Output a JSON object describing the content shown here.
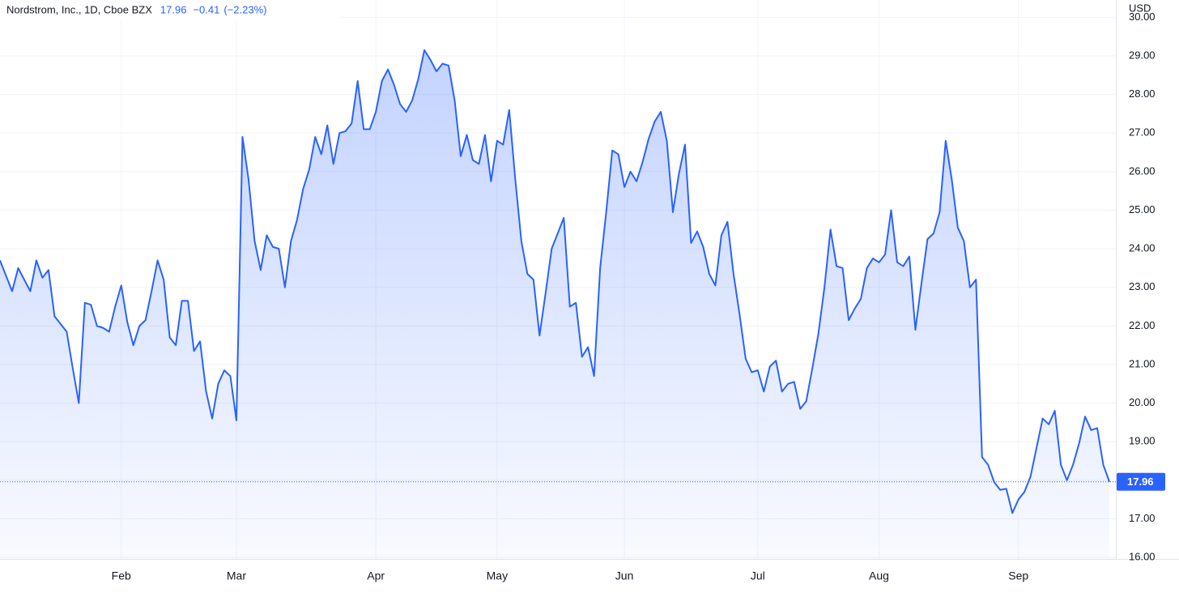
{
  "chart_data": {
    "type": "area",
    "title": "Nordstrom, Inc., 1D, Cboe BZX",
    "change": "−0.41",
    "change_pct": "(−2.23%)",
    "currency": "USD",
    "color": "#2962ff",
    "grid": true,
    "ylim": [
      15.96,
      30.45
    ],
    "yticks": [
      {
        "value": 16,
        "label": "16.00"
      },
      {
        "value": 17,
        "label": "17.00"
      },
      {
        "value": 18,
        "label": "18.00"
      },
      {
        "value": 19,
        "label": "19.00"
      },
      {
        "value": 20,
        "label": "20.00"
      },
      {
        "value": 21,
        "label": "21.00"
      },
      {
        "value": 22,
        "label": "22.00"
      },
      {
        "value": 23,
        "label": "23.00"
      },
      {
        "value": 24,
        "label": "24.00"
      },
      {
        "value": 25,
        "label": "25.00"
      },
      {
        "value": 26,
        "label": "26.00"
      },
      {
        "value": 27,
        "label": "27.00"
      },
      {
        "value": 28,
        "label": "28.00"
      },
      {
        "value": 29,
        "label": "29.00"
      },
      {
        "value": 30,
        "label": "30.00"
      }
    ],
    "categories": [
      null,
      null,
      null,
      null,
      null,
      null,
      null,
      null,
      null,
      null,
      null,
      null,
      null,
      null,
      null,
      null,
      null,
      null,
      null,
      null,
      "Feb",
      null,
      null,
      null,
      null,
      null,
      null,
      null,
      null,
      null,
      null,
      null,
      null,
      null,
      null,
      null,
      null,
      null,
      null,
      "Mar",
      null,
      null,
      null,
      null,
      null,
      null,
      null,
      null,
      null,
      null,
      null,
      null,
      null,
      null,
      null,
      null,
      null,
      null,
      null,
      null,
      null,
      null,
      "Apr",
      null,
      null,
      null,
      null,
      null,
      null,
      null,
      null,
      null,
      null,
      null,
      null,
      null,
      null,
      null,
      null,
      null,
      null,
      null,
      "May",
      null,
      null,
      null,
      null,
      null,
      null,
      null,
      null,
      null,
      null,
      null,
      null,
      null,
      null,
      null,
      null,
      null,
      null,
      null,
      null,
      "Jun",
      null,
      null,
      null,
      null,
      null,
      null,
      null,
      null,
      null,
      null,
      null,
      null,
      null,
      null,
      null,
      null,
      null,
      null,
      null,
      null,
      null,
      "Jul",
      null,
      null,
      null,
      null,
      null,
      null,
      null,
      null,
      null,
      null,
      null,
      null,
      null,
      null,
      null,
      null,
      null,
      null,
      null,
      "Aug",
      null,
      null,
      null,
      null,
      null,
      null,
      null,
      null,
      null,
      null,
      null,
      null,
      null,
      null,
      null,
      null,
      null,
      null,
      null,
      null,
      null,
      null,
      "Sep",
      null,
      null,
      null,
      null,
      null,
      null,
      null,
      null,
      null,
      null,
      null,
      null,
      null,
      null,
      null
    ],
    "series": [
      {
        "name": "Nordstrom, Inc.",
        "color": "#2962ff",
        "values": [
          23.7,
          23.3,
          22.9,
          23.5,
          23.2,
          22.9,
          23.7,
          23.25,
          23.45,
          22.25,
          22.05,
          21.85,
          20.9,
          20.0,
          22.6,
          22.55,
          22.0,
          21.95,
          21.85,
          22.5,
          23.05,
          22.1,
          21.5,
          22.0,
          22.15,
          22.9,
          23.7,
          23.2,
          21.7,
          21.5,
          22.65,
          22.65,
          21.35,
          21.6,
          20.3,
          19.6,
          20.5,
          20.85,
          20.7,
          19.55,
          26.9,
          25.8,
          24.2,
          23.45,
          24.35,
          24.05,
          24.0,
          23.0,
          24.2,
          24.75,
          25.55,
          26.05,
          26.9,
          26.45,
          27.2,
          26.2,
          27.0,
          27.05,
          27.25,
          28.35,
          27.1,
          27.1,
          27.55,
          28.35,
          28.65,
          28.25,
          27.75,
          27.55,
          27.85,
          28.4,
          29.15,
          28.9,
          28.6,
          28.8,
          28.75,
          27.85,
          26.4,
          26.95,
          26.3,
          26.2,
          26.95,
          25.75,
          26.8,
          26.7,
          27.6,
          25.8,
          24.2,
          23.35,
          23.2,
          21.75,
          22.85,
          24.0,
          24.4,
          24.8,
          22.5,
          22.6,
          21.2,
          21.45,
          20.7,
          23.5,
          24.95,
          26.55,
          26.45,
          25.6,
          26.0,
          25.75,
          26.25,
          26.85,
          27.3,
          27.55,
          26.8,
          24.95,
          25.95,
          26.7,
          24.15,
          24.45,
          24.05,
          23.35,
          23.05,
          24.35,
          24.7,
          23.35,
          22.3,
          21.15,
          20.8,
          20.85,
          20.3,
          20.95,
          21.1,
          20.3,
          20.5,
          20.55,
          19.85,
          20.05,
          20.9,
          21.8,
          23.0,
          24.5,
          23.55,
          23.5,
          22.15,
          22.45,
          22.7,
          23.5,
          23.75,
          23.65,
          23.85,
          25.0,
          23.65,
          23.55,
          23.8,
          21.9,
          23.1,
          24.25,
          24.4,
          24.95,
          26.8,
          25.8,
          24.55,
          24.2,
          23.0,
          23.2,
          18.6,
          18.4,
          17.95,
          17.75,
          17.78,
          17.15,
          17.5,
          17.7,
          18.1,
          18.85,
          19.6,
          19.45,
          19.8,
          18.4,
          18.0,
          18.4,
          18.95,
          19.65,
          19.3,
          19.35,
          18.4,
          17.96
        ]
      }
    ]
  }
}
